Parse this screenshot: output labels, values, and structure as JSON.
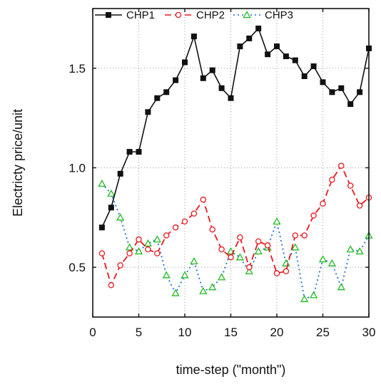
{
  "chart_data": {
    "type": "line",
    "xlabel": "time-step (\"month\")",
    "ylabel": "Electricty price/unit",
    "xlim": [
      0,
      30
    ],
    "ylim": [
      0.25,
      1.8
    ],
    "xticks": [
      0,
      5,
      10,
      15,
      20,
      25,
      30
    ],
    "yticks": [
      0.5,
      1.0,
      1.5
    ],
    "xtick_labels": [
      "0",
      "5",
      "10",
      "15",
      "20",
      "25",
      "30"
    ],
    "ytick_labels": [
      "0.5",
      "1.0",
      "1.5"
    ],
    "grid": "dotted",
    "legend_position": "top",
    "x": [
      1,
      2,
      3,
      4,
      5,
      6,
      7,
      8,
      9,
      10,
      11,
      12,
      13,
      14,
      15,
      16,
      17,
      18,
      19,
      20,
      21,
      22,
      23,
      24,
      25,
      26,
      27,
      28,
      29,
      30
    ],
    "series": [
      {
        "name": "CHP1",
        "color": "#111111",
        "line_style": "solid",
        "marker": "square",
        "values": [
          0.7,
          0.8,
          0.97,
          1.08,
          1.08,
          1.28,
          1.35,
          1.38,
          1.44,
          1.53,
          1.66,
          1.45,
          1.49,
          1.4,
          1.35,
          1.61,
          1.65,
          1.7,
          1.57,
          1.61,
          1.56,
          1.54,
          1.46,
          1.51,
          1.43,
          1.38,
          1.4,
          1.32,
          1.38,
          1.6
        ]
      },
      {
        "name": "CHP2",
        "color": "#e8191f",
        "line_style": "dashed",
        "marker": "circle",
        "values": [
          0.57,
          0.41,
          0.51,
          0.57,
          0.64,
          0.59,
          0.57,
          0.66,
          0.7,
          0.73,
          0.77,
          0.84,
          0.69,
          0.59,
          0.55,
          0.65,
          0.5,
          0.63,
          0.61,
          0.47,
          0.48,
          0.66,
          0.66,
          0.76,
          0.82,
          0.94,
          1.01,
          0.91,
          0.81,
          0.85
        ]
      },
      {
        "name": "CHP3",
        "color": "#1f6fd6",
        "line_style": "dotted",
        "marker": "triangle",
        "marker_color": "#22bb22",
        "values": [
          0.92,
          0.87,
          0.75,
          0.6,
          0.58,
          0.62,
          0.64,
          0.46,
          0.37,
          0.46,
          0.53,
          0.38,
          0.4,
          0.45,
          0.58,
          0.55,
          0.48,
          0.58,
          0.6,
          0.73,
          0.52,
          0.6,
          0.34,
          0.36,
          0.54,
          0.52,
          0.4,
          0.59,
          0.58,
          0.66
        ]
      }
    ]
  }
}
